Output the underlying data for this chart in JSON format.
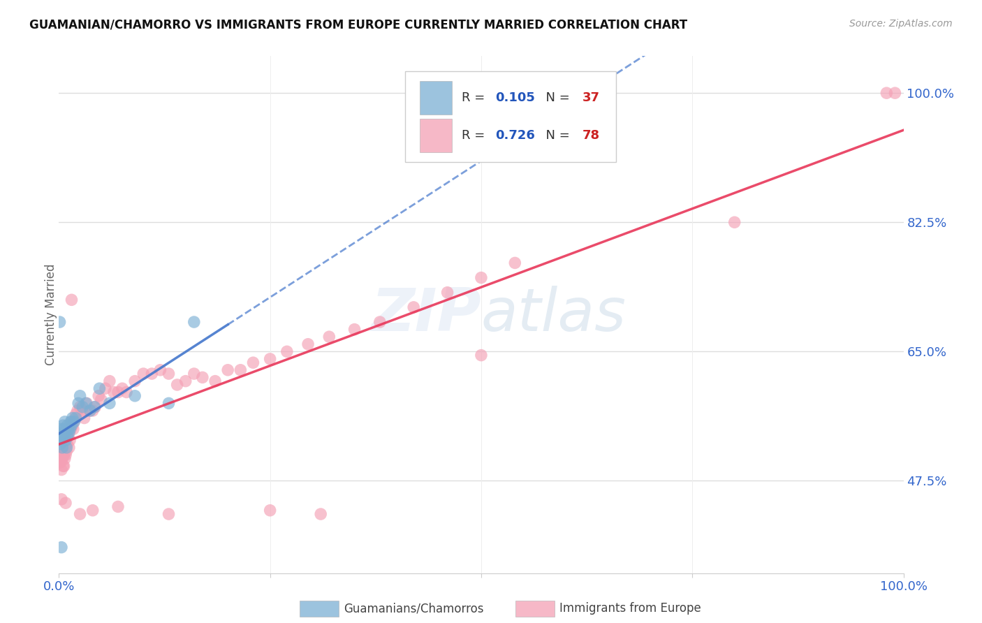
{
  "title": "GUAMANIAN/CHAMORRO VS IMMIGRANTS FROM EUROPE CURRENTLY MARRIED CORRELATION CHART",
  "source": "Source: ZipAtlas.com",
  "ylabel": "Currently Married",
  "yticks": [
    0.475,
    0.65,
    0.825,
    1.0
  ],
  "ytick_labels": [
    "47.5%",
    "65.0%",
    "82.5%",
    "100.0%"
  ],
  "R_blue": 0.105,
  "N_blue": 37,
  "R_pink": 0.726,
  "N_pink": 78,
  "legend_label_blue": "Guamanians/Chamorros",
  "legend_label_pink": "Immigrants from Europe",
  "blue_scatter_color": "#7bafd4",
  "pink_scatter_color": "#f4a0b5",
  "blue_line_color": "#4477cc",
  "pink_line_color": "#e8375a",
  "watermark_color": "#b0c8e8",
  "blue_x": [
    0.001,
    0.002,
    0.002,
    0.003,
    0.004,
    0.004,
    0.005,
    0.005,
    0.006,
    0.006,
    0.007,
    0.007,
    0.008,
    0.009,
    0.01,
    0.01,
    0.011,
    0.012,
    0.013,
    0.014,
    0.015,
    0.016,
    0.018,
    0.02,
    0.023,
    0.025,
    0.028,
    0.032,
    0.037,
    0.042,
    0.048,
    0.06,
    0.09,
    0.13,
    0.16,
    0.001,
    0.003
  ],
  "blue_y": [
    0.53,
    0.525,
    0.545,
    0.535,
    0.54,
    0.52,
    0.535,
    0.55,
    0.545,
    0.54,
    0.54,
    0.555,
    0.53,
    0.52,
    0.535,
    0.55,
    0.545,
    0.54,
    0.545,
    0.555,
    0.55,
    0.56,
    0.555,
    0.56,
    0.58,
    0.59,
    0.575,
    0.58,
    0.57,
    0.575,
    0.6,
    0.58,
    0.59,
    0.58,
    0.69,
    0.69,
    0.385
  ],
  "pink_x": [
    0.001,
    0.001,
    0.002,
    0.002,
    0.003,
    0.003,
    0.004,
    0.004,
    0.005,
    0.005,
    0.006,
    0.006,
    0.007,
    0.008,
    0.008,
    0.009,
    0.01,
    0.011,
    0.012,
    0.013,
    0.014,
    0.015,
    0.016,
    0.017,
    0.018,
    0.02,
    0.022,
    0.025,
    0.028,
    0.03,
    0.033,
    0.036,
    0.04,
    0.043,
    0.047,
    0.05,
    0.055,
    0.06,
    0.065,
    0.07,
    0.075,
    0.08,
    0.09,
    0.1,
    0.11,
    0.12,
    0.13,
    0.14,
    0.15,
    0.16,
    0.17,
    0.185,
    0.2,
    0.215,
    0.23,
    0.25,
    0.27,
    0.295,
    0.32,
    0.35,
    0.38,
    0.42,
    0.46,
    0.5,
    0.54,
    0.003,
    0.008,
    0.015,
    0.025,
    0.04,
    0.07,
    0.13,
    0.25,
    0.5,
    0.98,
    0.99,
    0.8,
    0.31
  ],
  "pink_y": [
    0.51,
    0.5,
    0.51,
    0.5,
    0.505,
    0.49,
    0.515,
    0.505,
    0.51,
    0.495,
    0.51,
    0.495,
    0.505,
    0.525,
    0.51,
    0.515,
    0.525,
    0.535,
    0.52,
    0.53,
    0.545,
    0.555,
    0.55,
    0.545,
    0.555,
    0.565,
    0.57,
    0.575,
    0.57,
    0.56,
    0.58,
    0.57,
    0.57,
    0.575,
    0.59,
    0.585,
    0.6,
    0.61,
    0.595,
    0.595,
    0.6,
    0.595,
    0.61,
    0.62,
    0.62,
    0.625,
    0.62,
    0.605,
    0.61,
    0.62,
    0.615,
    0.61,
    0.625,
    0.625,
    0.635,
    0.64,
    0.65,
    0.66,
    0.67,
    0.68,
    0.69,
    0.71,
    0.73,
    0.75,
    0.77,
    0.45,
    0.445,
    0.72,
    0.43,
    0.435,
    0.44,
    0.43,
    0.435,
    0.645,
    1.0,
    1.0,
    0.825,
    0.43
  ],
  "ylim_min": 0.35,
  "ylim_max": 1.05,
  "xlim_min": 0.0,
  "xlim_max": 1.0
}
